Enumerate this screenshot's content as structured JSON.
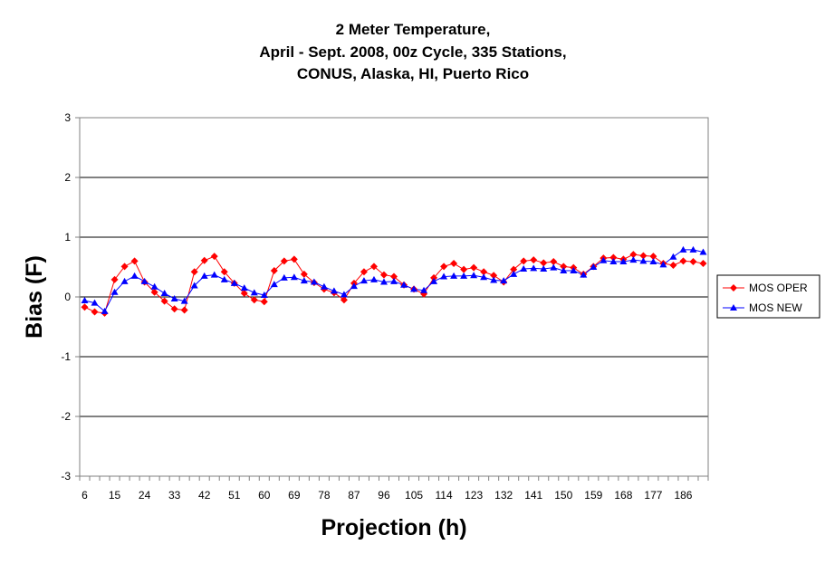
{
  "chart_data": {
    "type": "line",
    "title_lines": [
      "2 Meter Temperature,",
      "April - Sept. 2008, 00z Cycle, 335 Stations,",
      "CONUS, Alaska, HI, Puerto Rico"
    ],
    "xlabel": "Projection (h)",
    "ylabel": "Bias (F)",
    "ylim": [
      -3,
      3
    ],
    "yticks": [
      -3,
      -2,
      -1,
      0,
      1,
      2,
      3
    ],
    "xticks": [
      6,
      15,
      24,
      33,
      42,
      51,
      60,
      69,
      78,
      87,
      96,
      105,
      114,
      123,
      132,
      141,
      150,
      159,
      168,
      177,
      186
    ],
    "grid": "horizontal",
    "legend_position": "right",
    "x": [
      6,
      9,
      12,
      15,
      18,
      21,
      24,
      27,
      30,
      33,
      36,
      39,
      42,
      45,
      48,
      51,
      54,
      57,
      60,
      63,
      66,
      69,
      72,
      75,
      78,
      81,
      84,
      87,
      90,
      93,
      96,
      99,
      102,
      105,
      108,
      111,
      114,
      117,
      120,
      123,
      126,
      129,
      132,
      135,
      138,
      141,
      144,
      147,
      150,
      153,
      156,
      159,
      162,
      165,
      168,
      171,
      174,
      177,
      180,
      183,
      186,
      189,
      192
    ],
    "series": [
      {
        "name": "MOS OPER",
        "color": "#ff0000",
        "marker": "diamond",
        "values": [
          -0.17,
          -0.25,
          -0.27,
          0.29,
          0.51,
          0.6,
          0.25,
          0.08,
          -0.07,
          -0.2,
          -0.22,
          0.42,
          0.61,
          0.68,
          0.42,
          0.23,
          0.06,
          -0.05,
          -0.08,
          0.44,
          0.6,
          0.63,
          0.38,
          0.24,
          0.13,
          0.07,
          -0.05,
          0.23,
          0.42,
          0.51,
          0.37,
          0.34,
          0.2,
          0.13,
          0.05,
          0.32,
          0.51,
          0.56,
          0.46,
          0.49,
          0.42,
          0.36,
          0.25,
          0.46,
          0.6,
          0.62,
          0.57,
          0.59,
          0.51,
          0.49,
          0.38,
          0.51,
          0.65,
          0.66,
          0.63,
          0.71,
          0.69,
          0.68,
          0.56,
          0.53,
          0.6,
          0.59,
          0.56
        ]
      },
      {
        "name": "MOS NEW",
        "color": "#0000ff",
        "marker": "triangle",
        "values": [
          -0.06,
          -0.1,
          -0.24,
          0.08,
          0.26,
          0.35,
          0.26,
          0.17,
          0.06,
          -0.03,
          -0.07,
          0.19,
          0.35,
          0.37,
          0.29,
          0.23,
          0.15,
          0.07,
          0.03,
          0.21,
          0.32,
          0.33,
          0.27,
          0.25,
          0.17,
          0.1,
          0.04,
          0.18,
          0.27,
          0.29,
          0.25,
          0.26,
          0.2,
          0.13,
          0.11,
          0.26,
          0.34,
          0.35,
          0.35,
          0.36,
          0.33,
          0.28,
          0.27,
          0.38,
          0.47,
          0.48,
          0.47,
          0.49,
          0.44,
          0.44,
          0.37,
          0.5,
          0.61,
          0.59,
          0.59,
          0.62,
          0.6,
          0.59,
          0.54,
          0.67,
          0.79,
          0.79,
          0.75
        ]
      }
    ]
  }
}
